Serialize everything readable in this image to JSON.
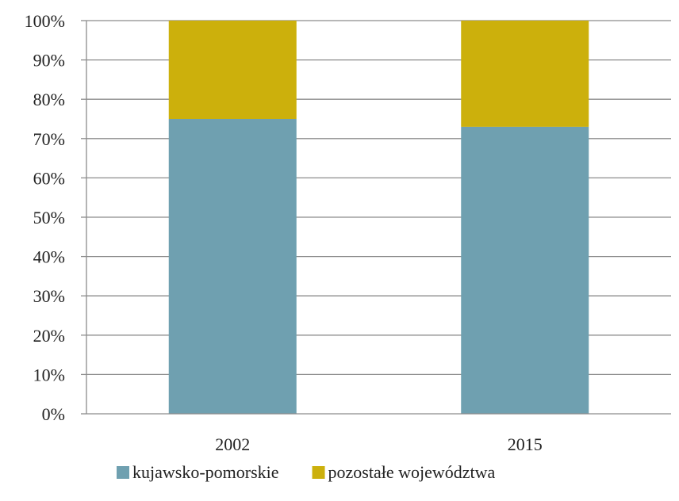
{
  "chart_data": {
    "type": "bar",
    "stacked": true,
    "normalized_percent": true,
    "categories": [
      "2002",
      "2015"
    ],
    "series": [
      {
        "name": "kujawsko-pomorskie",
        "color": "#6fa0b0",
        "values": [
          75,
          73
        ]
      },
      {
        "name": "pozostałe województwa",
        "color": "#ccb00c",
        "values": [
          25,
          27
        ]
      }
    ],
    "ylim": [
      0,
      100
    ],
    "yticks": [
      0,
      10,
      20,
      30,
      40,
      50,
      60,
      70,
      80,
      90,
      100
    ],
    "ytick_labels": [
      "0%",
      "10%",
      "20%",
      "30%",
      "40%",
      "50%",
      "60%",
      "70%",
      "80%",
      "90%",
      "100%"
    ],
    "grid": true,
    "legend_position": "bottom",
    "title": "",
    "xlabel": "",
    "ylabel": ""
  }
}
